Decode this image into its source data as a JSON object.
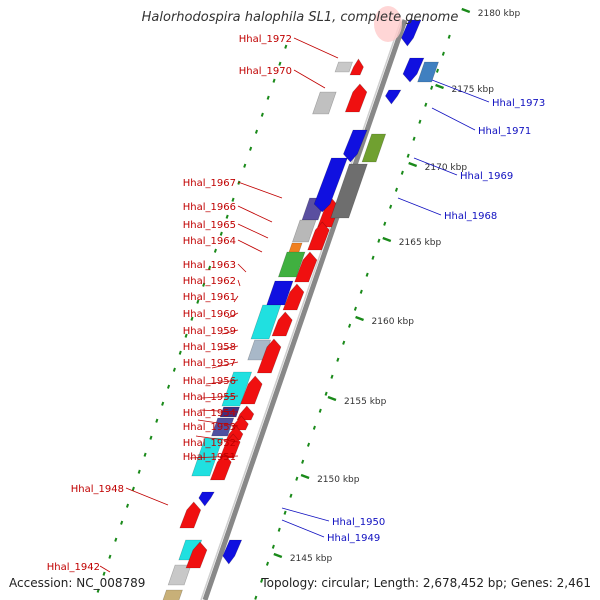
{
  "title": "Halorhodospira halophila SL1, complete genome",
  "footer": {
    "accession": "Accession: NC_008789",
    "summary": "Topology: circular; Length: 2,678,452 bp; Genes: 2,461"
  },
  "colors": {
    "left_label": "#c00000",
    "right_label": "#1010c0",
    "backbone": "#888888",
    "tick": "#1a8a1a"
  },
  "kbp_ticks": [
    "2180 kbp",
    "2175 kbp",
    "2170 kbp",
    "2165 kbp",
    "2160 kbp",
    "2155 kbp",
    "2150 kbp",
    "2145 kbp"
  ],
  "left_labels": [
    "Hhal_1972",
    "Hhal_1970",
    "Hhal_1967",
    "Hhal_1966",
    "Hhal_1965",
    "Hhal_1964",
    "Hhal_1963",
    "Hhal_1962",
    "Hhal_1961",
    "Hhal_1960",
    "Hhal_1959",
    "Hhal_1958",
    "Hhal_1957",
    "Hhal_1956",
    "Hhal_1955",
    "Hhal_1954",
    "Hhal_1953",
    "Hhal_1952",
    "Hhal_1951",
    "Hhal_1948",
    "Hhal_1942"
  ],
  "right_labels": [
    "Hhal_1973",
    "Hhal_1971",
    "Hhal_1969",
    "Hhal_1968",
    "Hhal_1950",
    "Hhal_1949"
  ]
}
